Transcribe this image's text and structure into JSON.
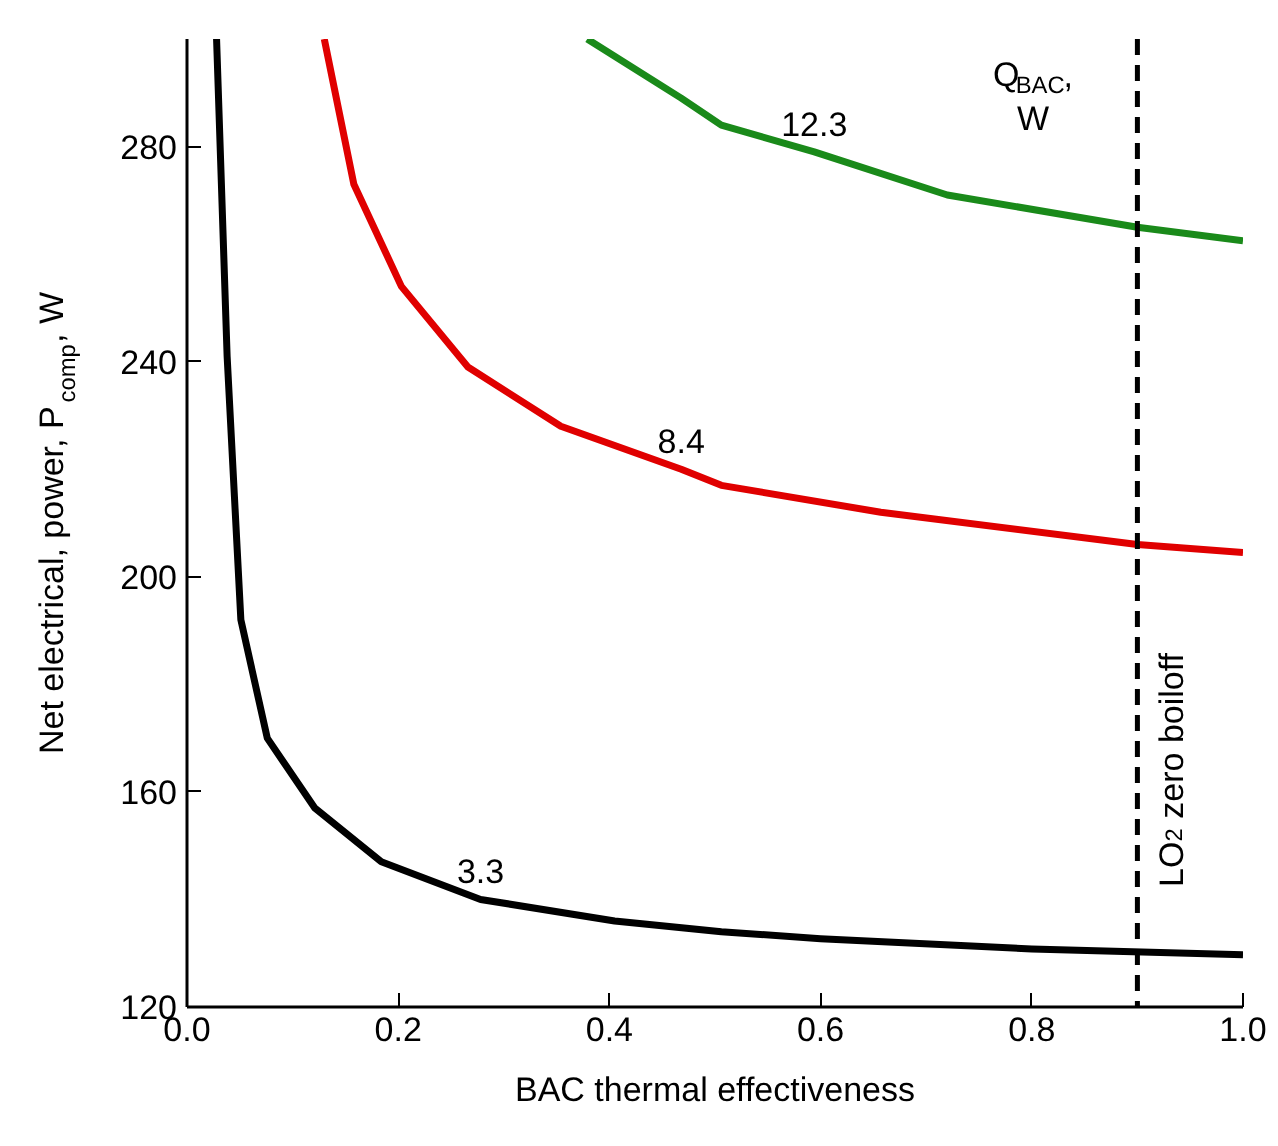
{
  "chart_data": {
    "type": "line",
    "xlabel": "BAC thermal effectiveness",
    "ylabel": "Net electrical, power, P$_{comp}$, W",
    "legend_title": "Q$_{BAC}$, W",
    "xlim": [
      0,
      1.0
    ],
    "ylim": [
      120,
      300
    ],
    "xticks": [
      {
        "value": 0,
        "label": "0.0"
      },
      0.2,
      0.4,
      0.6,
      0.8,
      {
        "value": 1.0,
        "label": "1.0"
      }
    ],
    "yticks": [
      120,
      160,
      200,
      240,
      280
    ],
    "grid": false,
    "marker": "none",
    "line_style": "solid",
    "series": [
      {
        "name": "3.3",
        "color": "#000000",
        "x": [
          0.028,
          0.038,
          0.051,
          0.076,
          0.121,
          0.184,
          0.278,
          0.405,
          0.506,
          0.6,
          0.8,
          1.0
        ],
        "values": [
          300,
          241,
          192,
          170,
          157,
          147,
          140,
          136,
          134,
          132.7,
          130.8,
          129.7
        ]
      },
      {
        "name": "8.4",
        "color": "#e00000",
        "x": [
          0.13,
          0.158,
          0.203,
          0.266,
          0.354,
          0.468,
          0.506,
          0.657,
          0.9,
          1.0
        ],
        "values": [
          300,
          273,
          254,
          239,
          228,
          220,
          217,
          212,
          206,
          204.5
        ]
      },
      {
        "name": "12.3",
        "color": "#1a8a1a",
        "x": [
          0.379,
          0.468,
          0.506,
          0.594,
          0.72,
          0.9,
          1.0
        ],
        "values": [
          300,
          289,
          284,
          279,
          271,
          265,
          262.5
        ]
      }
    ],
    "ref_lines": [
      {
        "axis": "x",
        "value": 0.9,
        "label": "LO$_{2}$ zero boiloff",
        "color": "#000000",
        "line_style": "dashed"
      }
    ]
  }
}
